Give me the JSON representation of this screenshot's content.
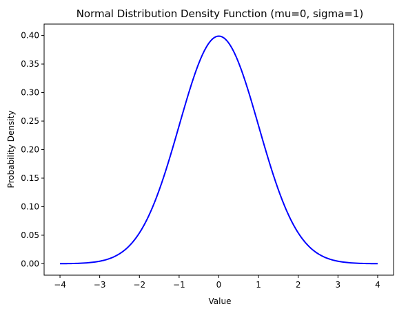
{
  "chart_data": {
    "type": "line",
    "title": "Normal Distribution Density Function (mu=0, sigma=1)",
    "xlabel": "Value",
    "ylabel": "Probability Density",
    "xlim": [
      -4.4,
      4.4
    ],
    "ylim": [
      -0.02,
      0.42
    ],
    "xticks": [
      -4,
      -3,
      -2,
      -1,
      0,
      1,
      2,
      3,
      4
    ],
    "xtick_labels": [
      "−4",
      "−3",
      "−2",
      "−1",
      "0",
      "1",
      "2",
      "3",
      "4"
    ],
    "yticks": [
      0.0,
      0.05,
      0.1,
      0.15,
      0.2,
      0.25,
      0.3,
      0.35,
      0.4
    ],
    "ytick_labels": [
      "0.00",
      "0.05",
      "0.10",
      "0.15",
      "0.20",
      "0.25",
      "0.30",
      "0.35",
      "0.40"
    ],
    "grid": false,
    "legend": "none",
    "series": [
      {
        "color": "#0000ff",
        "x": [
          -4.0,
          -3.5,
          -3.0,
          -2.5,
          -2.0,
          -1.75,
          -1.5,
          -1.25,
          -1.0,
          -0.75,
          -0.5,
          -0.25,
          0.0,
          0.25,
          0.5,
          0.75,
          1.0,
          1.25,
          1.5,
          1.75,
          2.0,
          2.5,
          3.0,
          3.5,
          4.0
        ],
        "y": [
          0.0001,
          0.0009,
          0.0044,
          0.0175,
          0.054,
          0.0863,
          0.1295,
          0.1826,
          0.242,
          0.3011,
          0.3521,
          0.3867,
          0.3989,
          0.3867,
          0.3521,
          0.3011,
          0.242,
          0.1826,
          0.1295,
          0.0863,
          0.054,
          0.0175,
          0.0044,
          0.0009,
          0.0001
        ]
      }
    ]
  }
}
